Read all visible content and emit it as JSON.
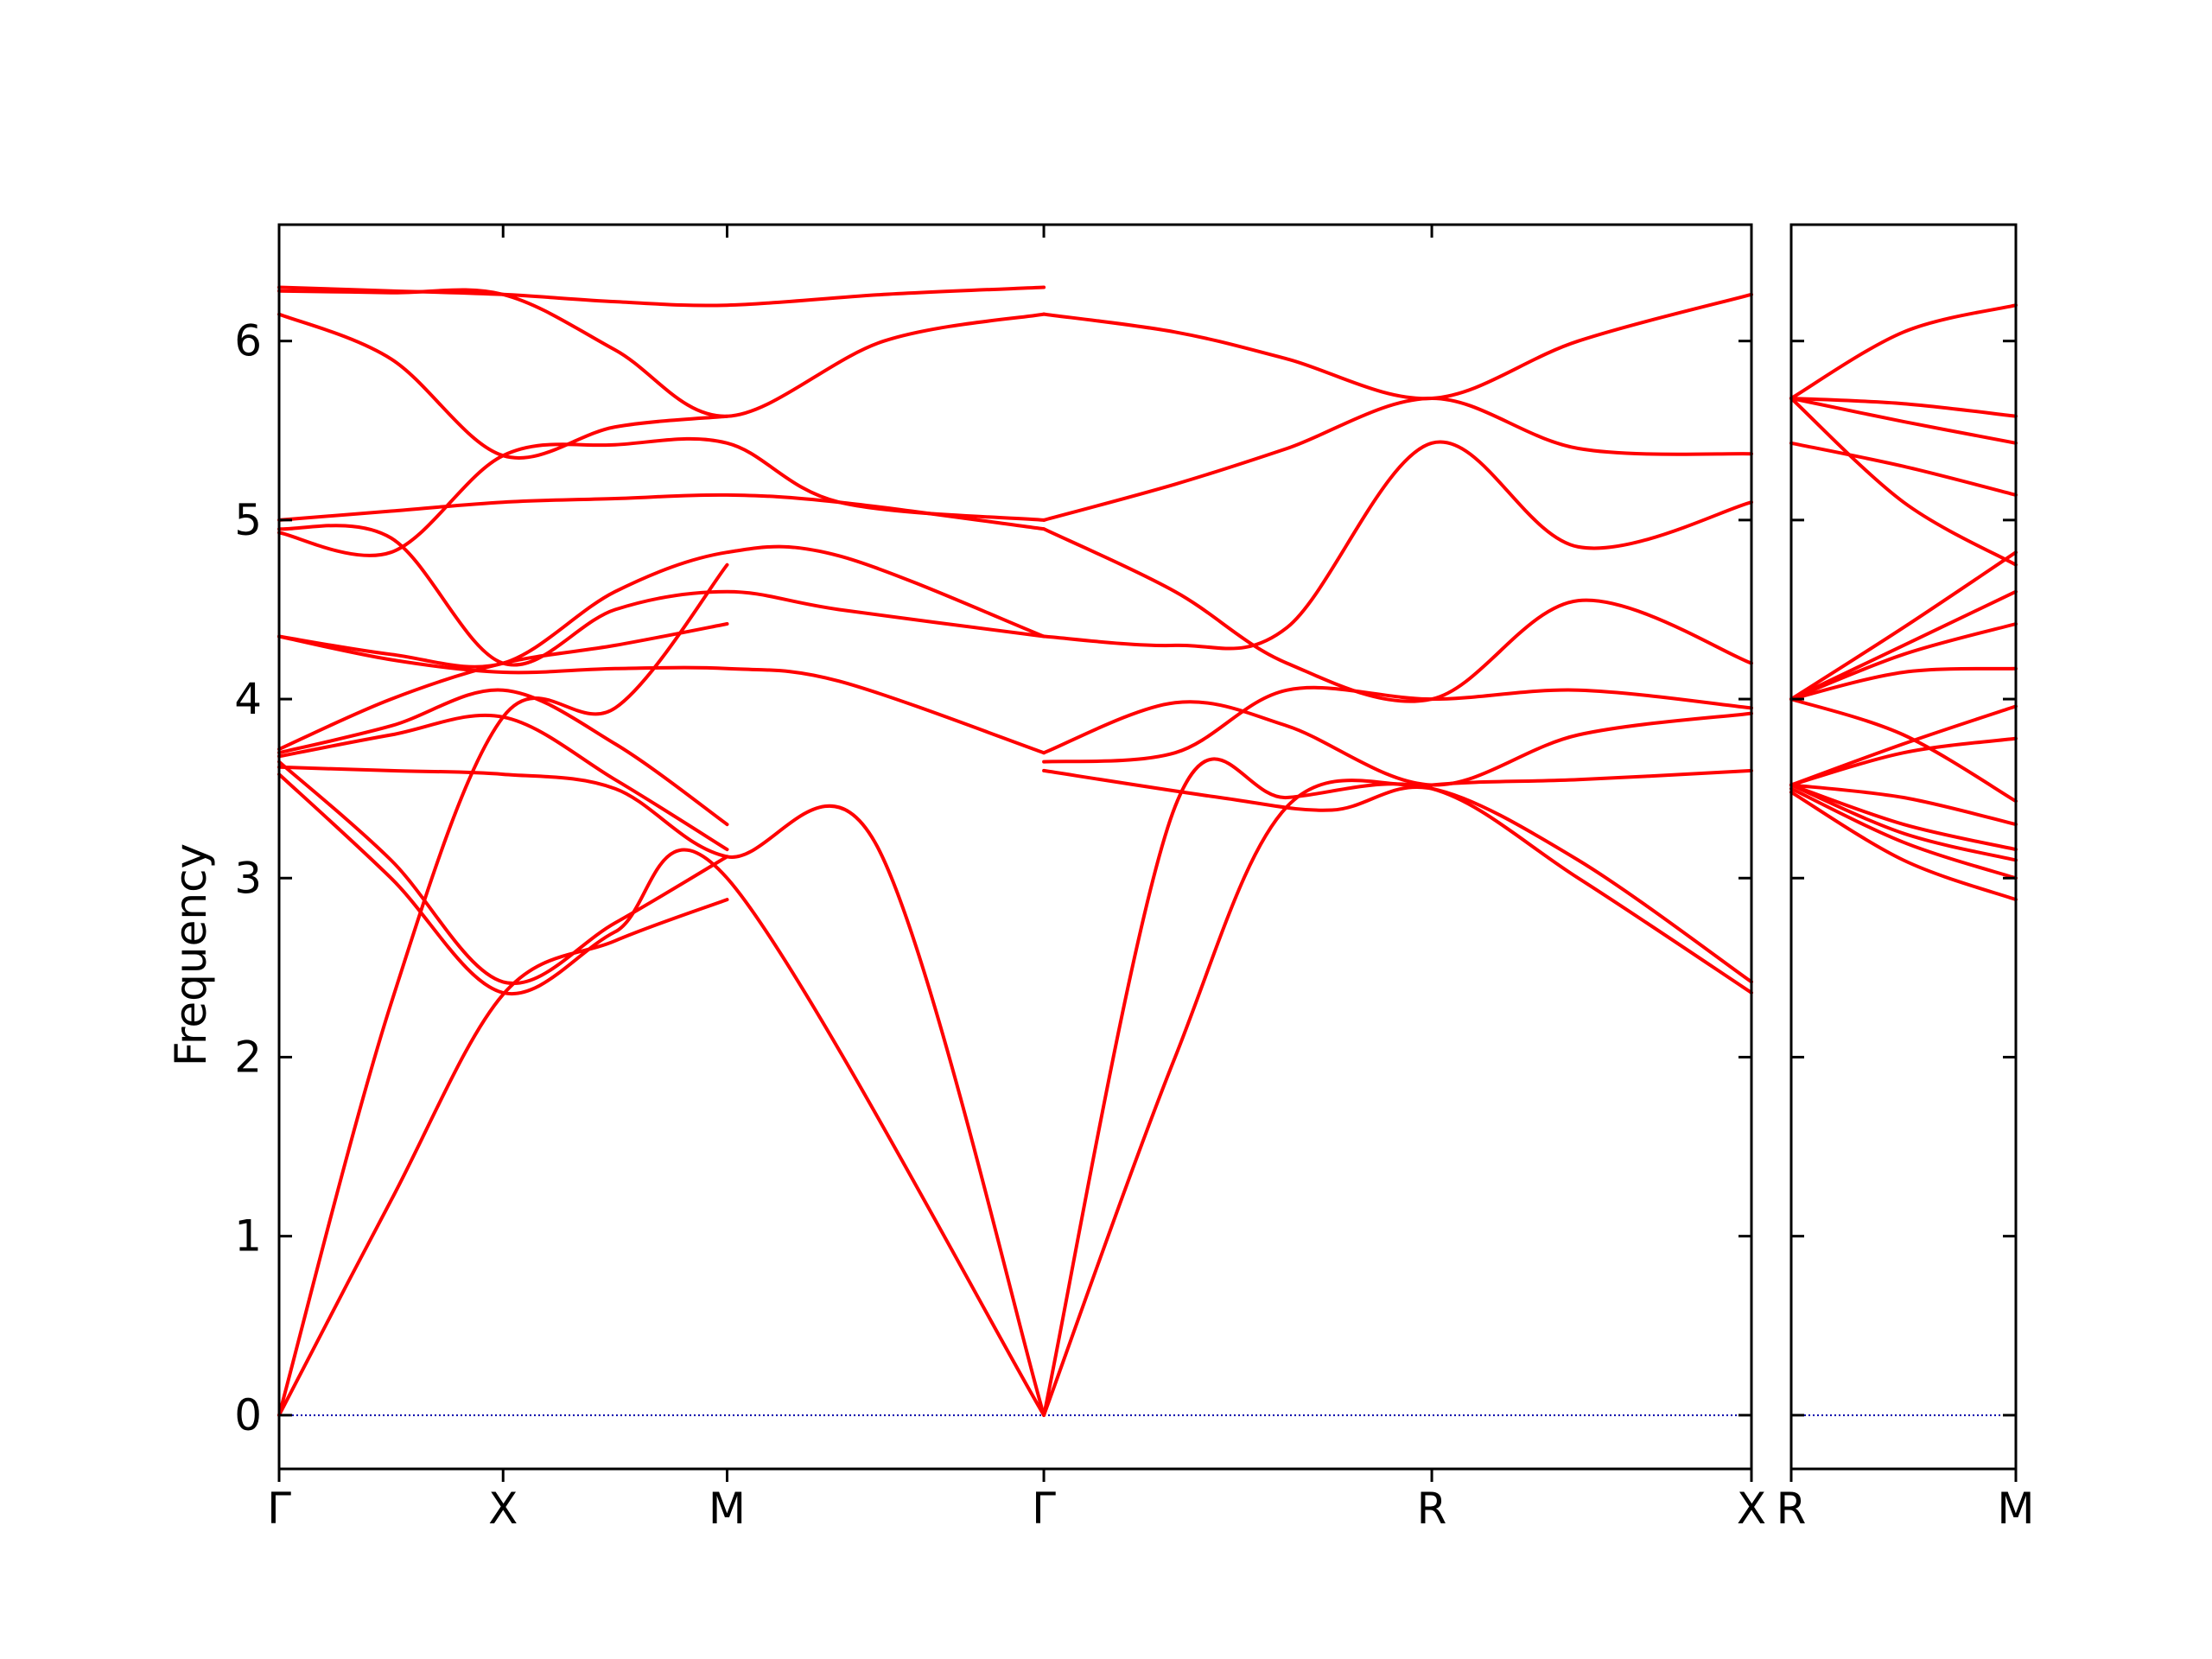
{
  "chart_data": {
    "type": "line",
    "title": "",
    "xlabel": "",
    "ylabel": "Frequency",
    "ylim": [
      -0.3,
      6.65
    ],
    "yticks": [
      0,
      1,
      2,
      3,
      4,
      5,
      6
    ],
    "grid": false,
    "legend": "none",
    "colors": {
      "bands": "#ff0000",
      "zero_line": "#0000aa",
      "axes": "#000000"
    },
    "panels": [
      {
        "xlim": [
          0,
          6.573
        ],
        "labels": [
          {
            "x": 0.0,
            "text": "Γ"
          },
          {
            "x": 1.0,
            "text": "X"
          },
          {
            "x": 2.0,
            "text": "M"
          },
          {
            "x": 3.414,
            "text": "Γ"
          },
          {
            "x": 5.146,
            "text": "R"
          },
          {
            "x": 6.573,
            "text": "X"
          }
        ],
        "series": [
          {
            "x": [
              0,
              0.5,
              1.0,
              1.5,
              2.0
            ],
            "y": [
              0,
              1.2,
              2.35,
              2.65,
              2.88
            ]
          },
          {
            "x": [
              0,
              0.5,
              1.0,
              1.5,
              2.0
            ],
            "y": [
              0,
              2.3,
              3.9,
              3.95,
              4.75
            ]
          },
          {
            "x": [
              0,
              0.5,
              1.0,
              1.5,
              2.0,
              3.414
            ],
            "y": [
              3.58,
              3.0,
              2.36,
              2.7,
              3.0,
              0
            ]
          },
          {
            "x": [
              0,
              0.5,
              1.0,
              1.5,
              2.0
            ],
            "y": [
              3.65,
              3.1,
              2.42,
              2.75,
              3.12
            ]
          },
          {
            "x": [
              0,
              0.5,
              1.0,
              1.5,
              2.0,
              2.66,
              3.414
            ],
            "y": [
              3.62,
              3.6,
              3.58,
              3.5,
              3.12,
              3.2,
              0
            ]
          },
          {
            "x": [
              0,
              0.5,
              1.0,
              1.5,
              2.0
            ],
            "y": [
              3.68,
              3.8,
              3.9,
              3.55,
              3.16
            ]
          },
          {
            "x": [
              0,
              0.5,
              1.0,
              1.5,
              2.0
            ],
            "y": [
              3.7,
              3.85,
              4.05,
              3.75,
              3.3
            ]
          },
          {
            "x": [
              0,
              0.5,
              1.0,
              1.5,
              2.0
            ],
            "y": [
              3.72,
              4.0,
              4.2,
              4.3,
              4.42
            ]
          },
          {
            "x": [
              0,
              0.5,
              1.0,
              1.5,
              2.0,
              2.5,
              3.414
            ],
            "y": [
              4.35,
              4.22,
              4.15,
              4.17,
              4.17,
              4.1,
              3.7
            ]
          },
          {
            "x": [
              0,
              0.5,
              1.0,
              1.5,
              2.0,
              2.5,
              3.414
            ],
            "y": [
              4.35,
              4.25,
              4.2,
              4.6,
              4.82,
              4.8,
              4.35
            ]
          },
          {
            "x": [
              0,
              0.5,
              1.0,
              1.5,
              2.0,
              2.5,
              3.414
            ],
            "y": [
              4.95,
              4.9,
              4.2,
              4.5,
              4.6,
              4.5,
              4.35
            ]
          },
          {
            "x": [
              0,
              0.5,
              1.0,
              1.5,
              2.0,
              2.5,
              3.414
            ],
            "y": [
              5.0,
              5.05,
              5.1,
              5.12,
              5.14,
              5.1,
              4.95
            ]
          },
          {
            "x": [
              0,
              0.5,
              1.0,
              1.5,
              2.0,
              2.5,
              3.414
            ],
            "y": [
              4.93,
              4.82,
              5.36,
              5.42,
              5.43,
              5.1,
              5.0
            ]
          },
          {
            "x": [
              0,
              0.5,
              1.0,
              1.5,
              2.0
            ],
            "y": [
              6.15,
              5.9,
              5.36,
              5.52,
              5.58
            ]
          },
          {
            "x": [
              0,
              0.5,
              1.0,
              1.5,
              2.0,
              2.7,
              3.414
            ],
            "y": [
              6.28,
              6.27,
              6.26,
              5.95,
              5.58,
              6.0,
              6.15
            ]
          },
          {
            "x": [
              0,
              0.5,
              1.0,
              1.5,
              2.0,
              2.7,
              3.414
            ],
            "y": [
              6.3,
              6.28,
              6.26,
              6.22,
              6.2,
              6.26,
              6.3
            ]
          },
          {
            "x": [
              3.414,
              4.0,
              4.5,
              5.146,
              5.8,
              6.573
            ],
            "y": [
              0,
              2.0,
              3.4,
              3.52,
              3.55,
              3.6
            ]
          },
          {
            "x": [
              3.414,
              4.0,
              4.5,
              5.146,
              5.8,
              6.573
            ],
            "y": [
              0,
              3.4,
              3.45,
              3.5,
              3.0,
              2.36
            ]
          },
          {
            "x": [
              3.414,
              4.2,
              4.7,
              5.146,
              5.8,
              6.573
            ],
            "y": [
              3.6,
              3.45,
              3.38,
              3.5,
              3.1,
              2.42
            ]
          },
          {
            "x": [
              3.414,
              4.0,
              4.5,
              5.146,
              5.8,
              6.573
            ],
            "y": [
              3.65,
              3.7,
              4.05,
              4.0,
              4.05,
              3.95
            ]
          },
          {
            "x": [
              3.414,
              4.0,
              4.5,
              5.146,
              5.8,
              6.573
            ],
            "y": [
              3.7,
              3.98,
              3.85,
              3.52,
              3.8,
              3.92
            ]
          },
          {
            "x": [
              3.414,
              4.0,
              4.5,
              5.146,
              5.8,
              6.573
            ],
            "y": [
              4.35,
              4.3,
              4.4,
              5.43,
              4.85,
              5.1
            ]
          },
          {
            "x": [
              3.414,
              4.0,
              4.5,
              5.146,
              5.8,
              6.573
            ],
            "y": [
              4.95,
              4.6,
              4.2,
              4.0,
              4.55,
              4.2
            ]
          },
          {
            "x": [
              3.414,
              4.0,
              4.5,
              5.146,
              5.8,
              6.573
            ],
            "y": [
              5.0,
              5.2,
              5.4,
              5.68,
              5.4,
              5.37
            ]
          },
          {
            "x": [
              3.414,
              4.0,
              4.5,
              5.146,
              5.8,
              6.573
            ],
            "y": [
              6.15,
              6.05,
              5.9,
              5.68,
              6.0,
              6.26
            ]
          }
        ]
      },
      {
        "xlim": [
          0,
          1.0
        ],
        "labels": [
          {
            "x": 0.0,
            "text": "R"
          },
          {
            "x": 1.0,
            "text": "M"
          }
        ],
        "series": [
          {
            "x": [
              0,
              0.5,
              1.0
            ],
            "y": [
              5.68,
              6.05,
              6.2
            ]
          },
          {
            "x": [
              0,
              0.5,
              1.0
            ],
            "y": [
              5.68,
              5.65,
              5.58
            ]
          },
          {
            "x": [
              0,
              0.5,
              1.0
            ],
            "y": [
              5.68,
              5.55,
              5.43
            ]
          },
          {
            "x": [
              0,
              0.5,
              1.0
            ],
            "y": [
              5.43,
              5.3,
              5.14
            ]
          },
          {
            "x": [
              0,
              0.5,
              1.0
            ],
            "y": [
              5.68,
              5.1,
              4.75
            ]
          },
          {
            "x": [
              0,
              0.5,
              1.0
            ],
            "y": [
              4.0,
              4.4,
              4.82
            ]
          },
          {
            "x": [
              0,
              0.5,
              1.0
            ],
            "y": [
              4.0,
              4.3,
              4.6
            ]
          },
          {
            "x": [
              0,
              0.5,
              1.0
            ],
            "y": [
              4.0,
              4.25,
              4.42
            ]
          },
          {
            "x": [
              0,
              0.5,
              1.0
            ],
            "y": [
              4.0,
              4.15,
              4.17
            ]
          },
          {
            "x": [
              0,
              0.5,
              1.0
            ],
            "y": [
              3.52,
              3.75,
              3.96
            ]
          },
          {
            "x": [
              0,
              0.5,
              1.0
            ],
            "y": [
              3.52,
              3.7,
              3.78
            ]
          },
          {
            "x": [
              0,
              0.5,
              1.0
            ],
            "y": [
              4.0,
              3.8,
              3.43
            ]
          },
          {
            "x": [
              0,
              0.5,
              1.0
            ],
            "y": [
              3.52,
              3.45,
              3.3
            ]
          },
          {
            "x": [
              0,
              0.5,
              1.0
            ],
            "y": [
              3.52,
              3.3,
              3.16
            ]
          },
          {
            "x": [
              0,
              0.5,
              1.0
            ],
            "y": [
              3.52,
              3.25,
              3.1
            ]
          },
          {
            "x": [
              0,
              0.5,
              1.0
            ],
            "y": [
              3.5,
              3.2,
              3.0
            ]
          },
          {
            "x": [
              0,
              0.5,
              1.0
            ],
            "y": [
              3.48,
              3.1,
              2.88
            ]
          }
        ]
      }
    ]
  }
}
